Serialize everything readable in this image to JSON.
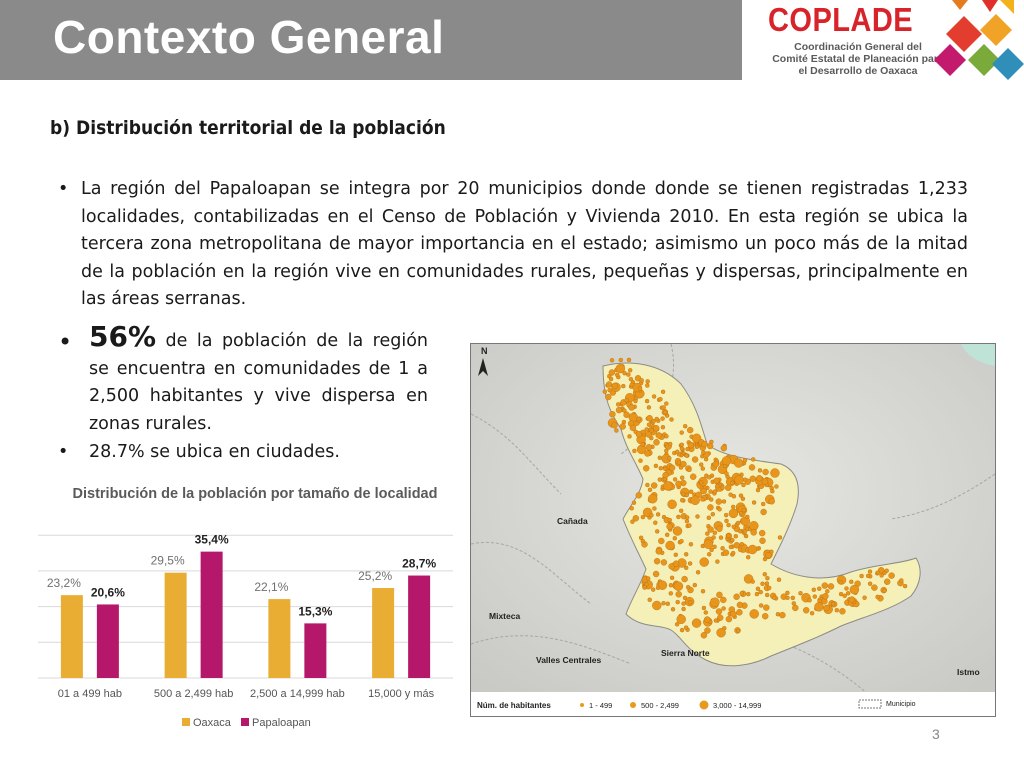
{
  "header": {
    "title": "Contexto General",
    "logo": {
      "word": "COPLADE",
      "lines": [
        "Coordinación General del",
        "Comité Estatal de Planeación para",
        "el Desarrollo de Oaxaca"
      ]
    }
  },
  "section_title": "b)  Distribución territorial de la población",
  "intro": {
    "bullet": "•",
    "text": "La región del Papaloapan se integra por 20 municipios donde donde se tienen registradas 1,233 localidades, contabilizadas en el Censo de Población y Vivienda 2010. En esta región se ubica la tercera zona metropolitana de mayor importancia en el estado; asimismo un poco más de la mitad de la población en la región vive en comunidades rurales, pequeñas y dispersas, principalmente en las áreas serranas."
  },
  "highlight": {
    "bullet": "•",
    "big": "56%",
    "text": " de la población de la región se encuentra en comunidades de 1 a 2,500 habitantes y vive dispersa en zonas rurales."
  },
  "secondary": {
    "bullet": "•",
    "text": "28.7% se ubica en ciudades."
  },
  "chart_data": {
    "type": "bar",
    "title": "Distribución de la población por tamaño de localidad",
    "categories": [
      "01 a 499 hab",
      "500 a 2,499 hab",
      "2,500 a 14,999 hab",
      "15,000 y más"
    ],
    "series": [
      {
        "name": "Oaxaca",
        "values": [
          23.2,
          29.5,
          22.1,
          25.2
        ],
        "labels": [
          "23,2%",
          "29,5%",
          "22,1%",
          "25,2%"
        ],
        "color": "#e8ad32"
      },
      {
        "name": "Papaloapan",
        "values": [
          20.6,
          35.4,
          15.3,
          28.7
        ],
        "labels": [
          "20,6%",
          "35,4%",
          "15,3%",
          "28,7%"
        ],
        "color": "#b5176b"
      }
    ],
    "ylim": [
      0,
      40
    ],
    "grid": true,
    "legend": "bottom"
  },
  "map": {
    "labels": {
      "canada": "Cañada",
      "mixteca": "Mixteca",
      "valles": "Valles Centrales",
      "sierra": "Sierra Norte",
      "istmo": "Istmo"
    },
    "north": "N",
    "legend": {
      "title": "Núm. de habitantes",
      "items": [
        "1 - 499",
        "500 - 2,499",
        "3,000 - 14,999"
      ],
      "municipio": "Municipio"
    }
  },
  "page_number": "3"
}
